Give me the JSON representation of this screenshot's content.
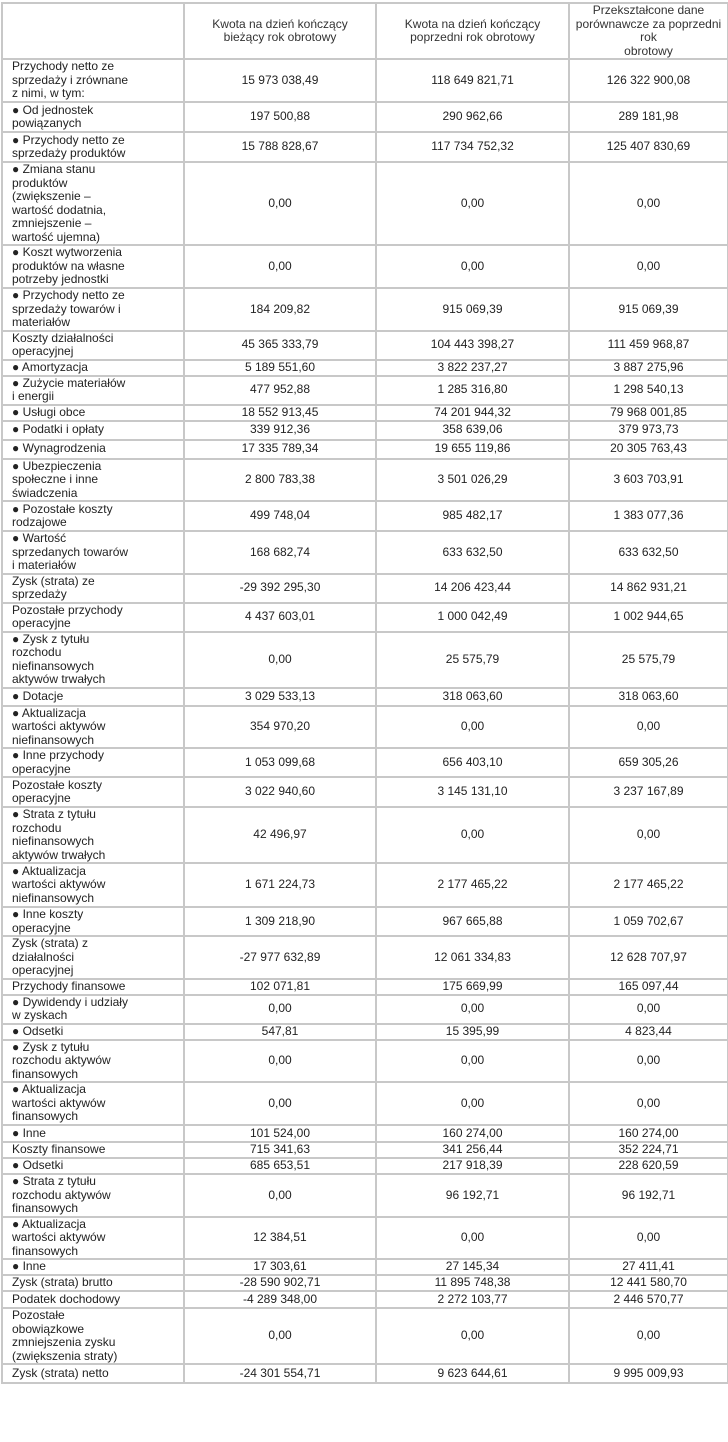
{
  "headers": [
    "",
    "Kwota na dzień kończący\nbieżący rok obrotowy",
    "Kwota na dzień kończący\npoprzedni rok obrotowy",
    "Przekształcone dane\nporównawcze za poprzedni rok\nobrotowy"
  ],
  "rows": [
    {
      "label": "Przychody netto ze\nsprzedaży i zrównane\nz nimi, w tym:",
      "values": [
        "15 973 038,49",
        "118 649 821,71",
        "126 322 900,08"
      ]
    },
    {
      "label": "● Od jednostek\npowiązanych",
      "values": [
        "197 500,88",
        "290 962,66",
        "289 181,98"
      ]
    },
    {
      "label": "● Przychody netto ze\nsprzedaży produktów",
      "values": [
        "15 788 828,67",
        "117 734 752,32",
        "125 407 830,69"
      ]
    },
    {
      "label": "● Zmiana stanu\nproduktów\n(zwiększenie –\nwartość dodatnia,\nzmniejszenie –\nwartość ujemna)",
      "values": [
        "0,00",
        "0,00",
        "0,00"
      ]
    },
    {
      "label": "● Koszt wytworzenia\nproduktów na własne\npotrzeby jednostki",
      "values": [
        "0,00",
        "0,00",
        "0,00"
      ]
    },
    {
      "label": "● Przychody netto ze\nsprzedaży towarów i\nmateriałów",
      "values": [
        "184 209,82",
        "915 069,39",
        "915 069,39"
      ]
    },
    {
      "label": "Koszty działalności\noperacyjnej",
      "values": [
        "45 365 333,79",
        "104 443 398,27",
        "111 459 968,87"
      ]
    },
    {
      "label": "● Amortyzacja",
      "values": [
        "5 189 551,60",
        "3 822 237,27",
        "3 887 275,96"
      ]
    },
    {
      "label": "● Zużycie materiałów\ni energii",
      "values": [
        "477 952,88",
        "1 285 316,80",
        "1 298 540,13"
      ]
    },
    {
      "label": "● Usługi obce",
      "values": [
        "18 552 913,45",
        "74 201 944,32",
        "79 968 001,85"
      ]
    },
    {
      "label": " ● Podatki i opłaty",
      "values": [
        "339 912,36",
        "358 639,06",
        "379 973,73"
      ]
    },
    {
      "label": "● Wynagrodzenia",
      "values": [
        "17 335 789,34",
        "19 655 119,86",
        "20 305 763,43"
      ]
    },
    {
      "label": "● Ubezpieczenia\nspołeczne i inne\nświadczenia",
      "values": [
        "2 800 783,38",
        "3 501 026,29",
        "3 603 703,91"
      ]
    },
    {
      "label": "● Pozostałe koszty\nrodzajowe",
      "values": [
        "499 748,04",
        "985 482,17",
        "1 383 077,36"
      ]
    },
    {
      "label": "● Wartość\nsprzedanych towarów\ni materiałów",
      "values": [
        "168 682,74",
        "633 632,50",
        "633 632,50"
      ]
    },
    {
      "label": "Zysk (strata) ze\nsprzedaży",
      "values": [
        "-29 392 295,30",
        "14 206 423,44",
        "14 862 931,21"
      ]
    },
    {
      "label": "Pozostałe przychody\noperacyjne",
      "values": [
        "4 437 603,01",
        "1 000 042,49",
        "1 002 944,65"
      ]
    },
    {
      "label": "● Zysk z tytułu\nrozchodu\nniefinansowych\naktywów trwałych",
      "values": [
        "0,00",
        "25 575,79",
        "25 575,79"
      ]
    },
    {
      "label": "● Dotacje",
      "values": [
        "3 029 533,13",
        "318 063,60",
        "318 063,60"
      ]
    },
    {
      "label": "● Aktualizacja\nwartości aktywów\nniefinansowych",
      "values": [
        "354 970,20",
        "0,00",
        "0,00"
      ]
    },
    {
      "label": "● Inne przychody\noperacyjne",
      "values": [
        "1 053 099,68",
        "656 403,10",
        "659 305,26"
      ]
    },
    {
      "label": "Pozostałe koszty\noperacyjne",
      "values": [
        "3 022 940,60",
        "3 145 131,10",
        "3 237 167,89"
      ]
    },
    {
      "label": "● Strata z tytułu\nrozchodu\nniefinansowych\naktywów trwałych",
      "values": [
        "42 496,97",
        "0,00",
        "0,00"
      ]
    },
    {
      "label": "● Aktualizacja\nwartości aktywów\nniefinansowych",
      "values": [
        "1 671 224,73",
        "2 177 465,22",
        "2 177 465,22"
      ]
    },
    {
      "label": "● Inne koszty\noperacyjne",
      "values": [
        "1 309 218,90",
        "967 665,88",
        "1 059 702,67"
      ]
    },
    {
      "label": "Zysk (strata) z\ndziałalności\noperacyjnej",
      "values": [
        "-27 977 632,89",
        "12 061 334,83",
        "12 628 707,97"
      ]
    },
    {
      "label": "Przychody finansowe",
      "values": [
        "102 071,81",
        "175 669,99",
        "165 097,44"
      ]
    },
    {
      "label": "● Dywidendy i udziały\nw zyskach",
      "values": [
        "0,00",
        "0,00",
        "0,00"
      ]
    },
    {
      "label": "● Odsetki",
      "values": [
        "547,81",
        "15 395,99",
        "4 823,44"
      ]
    },
    {
      "label": "● Zysk z tytułu\nrozchodu aktywów\nfinansowych",
      "values": [
        "0,00",
        "0,00",
        "0,00"
      ]
    },
    {
      "label": "● Aktualizacja\nwartości aktywów\nfinansowych",
      "values": [
        "0,00",
        "0,00",
        "0,00"
      ]
    },
    {
      "label": "● Inne",
      "values": [
        "101 524,00",
        "160 274,00",
        "160 274,00"
      ]
    },
    {
      "label": "Koszty finansowe",
      "values": [
        "715 341,63",
        "341 256,44",
        "352 224,71"
      ]
    },
    {
      "label": "● Odsetki",
      "values": [
        "685 653,51",
        "217 918,39",
        "228 620,59"
      ]
    },
    {
      "label": "● Strata z tytułu\nrozchodu aktywów\nfinansowych",
      "values": [
        "0,00",
        "96 192,71",
        "96 192,71"
      ]
    },
    {
      "label": "● Aktualizacja\nwartości aktywów\nfinansowych",
      "values": [
        "12 384,51",
        "0,00",
        "0,00"
      ]
    },
    {
      "label": "● Inne",
      "values": [
        "17 303,61",
        "27 145,34",
        "27 411,41"
      ]
    },
    {
      "label": " Zysk (strata) brutto",
      "values": [
        "-28 590 902,71",
        "11 895 748,38",
        "12 441 580,70"
      ]
    },
    {
      "label": "Podatek dochodowy",
      "values": [
        "-4 289 348,00",
        "2 272 103,77",
        "2 446 570,77"
      ]
    },
    {
      "label": "Pozostałe\nobowiązkowe\nzmniejszenia zysku\n(zwiększenia straty)",
      "values": [
        "0,00",
        "0,00",
        "0,00"
      ]
    },
    {
      "label": "Zysk (strata) netto",
      "values": [
        "-24 301 554,71",
        "9 623 644,61",
        "9 995 009,93"
      ]
    }
  ]
}
